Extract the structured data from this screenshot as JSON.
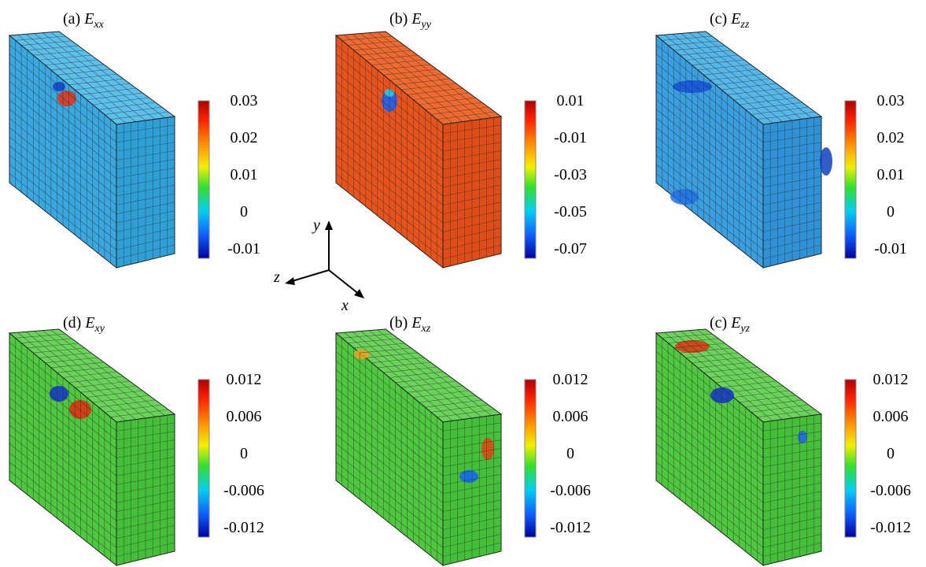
{
  "panels": [
    {
      "label": "(a)",
      "symbol": "E",
      "subscript": "xx",
      "colorbar_ticks": [
        "0.03",
        "0.02",
        "0.01",
        "0",
        "-0.01"
      ]
    },
    {
      "label": "(b)",
      "symbol": "E",
      "subscript": "yy",
      "colorbar_ticks": [
        "0.01",
        "-0.01",
        "-0.03",
        "-0.05",
        "-0.07"
      ]
    },
    {
      "label": "(c)",
      "symbol": "E",
      "subscript": "zz",
      "colorbar_ticks": [
        "0.03",
        "0.02",
        "0.01",
        "0",
        "-0.01"
      ]
    },
    {
      "label": "(d)",
      "symbol": "E",
      "subscript": "xy",
      "colorbar_ticks": [
        "0.012",
        "0.006",
        "0",
        "-0.006",
        "-0.012"
      ]
    },
    {
      "label": "(b)",
      "symbol": "E",
      "subscript": "xz",
      "colorbar_ticks": [
        "0.012",
        "0.006",
        "0",
        "-0.006",
        "-0.012"
      ]
    },
    {
      "label": "(c)",
      "symbol": "E",
      "subscript": "yz",
      "colorbar_ticks": [
        "0.012",
        "0.006",
        "0",
        "-0.006",
        "-0.012"
      ]
    }
  ],
  "axes": {
    "x": "x",
    "y": "y",
    "z": "z"
  }
}
